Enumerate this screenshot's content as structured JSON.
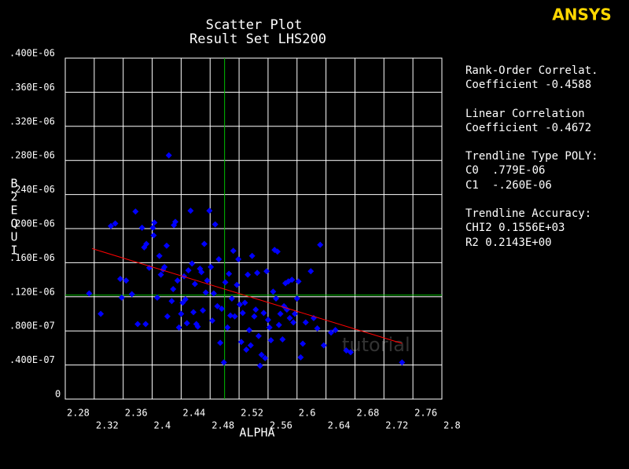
{
  "chart_data": {
    "type": "scatter",
    "title": "Scatter Plot",
    "subtitle": "Result Set LHS200",
    "x_label": "ALPHA",
    "y_label": "B2EQUI",
    "logo": "ANSYS",
    "watermark": "tutorial",
    "color": "#0000ff",
    "grid": true,
    "xlim": [
      2.28,
      2.8
    ],
    "xticks": [
      2.28,
      2.32,
      2.36,
      2.4,
      2.44,
      2.48,
      2.52,
      2.56,
      2.6,
      2.64,
      2.68,
      2.72,
      2.76,
      2.8
    ],
    "ylim": [
      0,
      4e-07
    ],
    "yticks": [
      0,
      {
        "value": 4e-08,
        "label": ".400E-07"
      },
      {
        "value": 8e-08,
        "label": ".800E-07"
      },
      {
        "value": 1.2e-07,
        "label": ".120E-06"
      },
      {
        "value": 1.6e-07,
        "label": ".160E-06"
      },
      {
        "value": 2e-07,
        "label": ".200E-06"
      },
      {
        "value": 2.4e-07,
        "label": ".240E-06"
      },
      {
        "value": 2.8e-07,
        "label": ".280E-06"
      },
      {
        "value": 3.2e-07,
        "label": ".320E-06"
      },
      {
        "value": 3.6e-07,
        "label": ".360E-06"
      },
      {
        "value": 4e-07,
        "label": ".400E-06"
      }
    ],
    "mean_x": 2.5,
    "mean_y": 1.22e-07,
    "mean_color": "#00c000",
    "trendline": {
      "color": "#ff0000",
      "x": [
        2.317,
        2.745
      ],
      "c0": {
        "name": "C0",
        "value": 7.79e-07,
        "label": ".779E-06"
      },
      "c1": {
        "name": "C1",
        "value": -2.6e-07,
        "label": "-.260E-06"
      }
    },
    "stats": [
      "Rank-Order Correlat.",
      "Coefficient -0.4588",
      "Linear Correlation",
      "Coefficient -0.4672",
      "Trendline Type POLY:",
      "Trendline Accuracy:",
      "CHI2 0.1556E+03",
      "R2   0.2143E+00"
    ],
    "x": [
      2.313,
      2.329,
      2.343,
      2.349,
      2.356,
      2.364,
      2.358,
      2.372,
      2.377,
      2.386,
      2.38,
      2.391,
      2.389,
      2.392,
      2.396,
      2.402,
      2.401,
      2.407,
      2.403,
      2.41,
      2.412,
      2.415,
      2.417,
      2.42,
      2.421,
      2.423,
      2.427,
      2.429,
      2.43,
      2.432,
      2.435,
      2.437,
      2.44,
      2.442,
      2.444,
      2.446,
      2.448,
      2.45,
      2.453,
      2.455,
      2.457,
      2.459,
      2.461,
      2.463,
      2.466,
      2.468,
      2.47,
      2.472,
      2.474,
      2.476,
      2.479,
      2.481,
      2.483,
      2.485,
      2.487,
      2.49,
      2.492,
      2.494,
      2.496,
      2.499,
      2.501,
      2.504,
      2.506,
      2.508,
      2.51,
      2.512,
      2.514,
      2.517,
      2.519,
      2.521,
      2.523,
      2.525,
      2.528,
      2.53,
      2.532,
      2.534,
      2.536,
      2.538,
      2.541,
      2.543,
      2.545,
      2.547,
      2.549,
      2.551,
      2.554,
      2.556,
      2.558,
      2.56,
      2.562,
      2.564,
      2.567,
      2.569,
      2.571,
      2.573,
      2.575,
      2.577,
      2.58,
      2.582,
      2.584,
      2.586,
      2.588,
      2.59,
      2.593,
      2.595,
      2.597,
      2.6,
      2.602,
      2.605,
      2.608,
      2.612,
      2.619,
      2.623,
      2.628,
      2.632,
      2.637,
      2.647,
      2.653,
      2.668,
      2.674,
      2.745
    ],
    "values": [
      1.24e-07,
      1e-07,
      2.03e-07,
      2.06e-07,
      1.41e-07,
      1.39e-07,
      1.19e-07,
      1.23e-07,
      2.2e-07,
      2.01e-07,
      8.8e-08,
      8.8e-08,
      1.78e-07,
      1.82e-07,
      1.54e-07,
      1.92e-07,
      2.01e-07,
      1.19e-07,
      2.07e-07,
      1.68e-07,
      1.46e-07,
      1.52e-07,
      1.55e-07,
      1.8e-07,
      9.7e-08,
      2.86e-07,
      1.15e-07,
      1.29e-07,
      2.04e-07,
      2.08e-07,
      1.39e-07,
      8.4e-08,
      1e-07,
      1.13e-07,
      1.44e-07,
      1.17e-07,
      8.9e-08,
      1.51e-07,
      2.21e-07,
      1.59e-07,
      1.02e-07,
      1.35e-07,
      8.8e-08,
      8.5e-08,
      1.53e-07,
      1.49e-07,
      1.04e-07,
      1.82e-07,
      1.25e-07,
      1.39e-07,
      2.21e-07,
      1.55e-07,
      9.2e-08,
      1.24e-07,
      2.05e-07,
      1.09e-07,
      1.64e-07,
      6.6e-08,
      1.06e-07,
      4.3e-08,
      1.37e-07,
      8.4e-08,
      1.47e-07,
      9.8e-08,
      1.18e-07,
      1.74e-07,
      9.7e-08,
      1.34e-07,
      1.64e-07,
      1.11e-07,
      6.7e-08,
      1.01e-07,
      1.13e-07,
      5.8e-08,
      1.46e-07,
      8.1e-08,
      6.3e-08,
      1.68e-07,
      9.7e-08,
      1.05e-07,
      1.48e-07,
      7.4e-08,
      3.9e-08,
      5.2e-08,
      1.01e-07,
      4.8e-08,
      1.5e-07,
      9.3e-08,
      8.4e-08,
      6.9e-08,
      1.26e-07,
      1.75e-07,
      1.18e-07,
      1.73e-07,
      8.7e-08,
      1e-07,
      7e-08,
      1.09e-07,
      1.36e-07,
      1.05e-07,
      1.38e-07,
      9.5e-08,
      1.4e-07,
      9e-08,
      1e-07,
      1.18e-07,
      1.38e-07,
      4.9e-08,
      6.5e-08,
      9e-08,
      1.5e-07,
      9.5e-08,
      8.3e-08,
      1.81e-07,
      6.3e-08,
      7.8e-08,
      8.1e-08,
      5.7e-08,
      5.5e-08,
      4.3e-08
    ]
  }
}
